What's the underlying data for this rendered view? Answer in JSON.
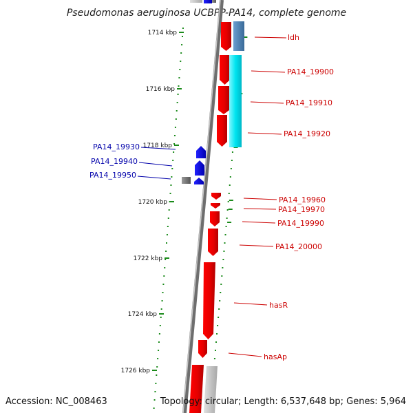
{
  "title": "Pseudomonas aeruginosa UCBPP-PA14, complete genome",
  "footer": {
    "accession": "Accession: NC_008463",
    "topology": "Topology: circular; Length: 6,537,648 bp; Genes: 5,964"
  },
  "ticks": [
    {
      "label": "1714 kbp"
    },
    {
      "label": "1716 kbp"
    },
    {
      "label": "1718 kbp"
    },
    {
      "label": "1720 kbp"
    },
    {
      "label": "1722 kbp"
    },
    {
      "label": "1724 kbp"
    },
    {
      "label": "1726 kbp"
    }
  ],
  "labels_right": [
    "ldh",
    "PA14_19900",
    "PA14_19910",
    "PA14_19920",
    "PA14_19960",
    "PA14_19970",
    "PA14_19990",
    "PA14_20000",
    "hasR",
    "hasAp"
  ],
  "labels_left": [
    "PA14_19930",
    "PA14_19940",
    "PA14_19950"
  ],
  "colors": {
    "forward_gene": "#ff0000",
    "reverse_gene": "#0000ff",
    "cds_light": "#00e5f0",
    "cds_steel": "#4a7fb0",
    "backbone": "#808080",
    "ticks": "#1a8a1a",
    "label_right": "#cc0000",
    "label_left": "#0000aa"
  }
}
